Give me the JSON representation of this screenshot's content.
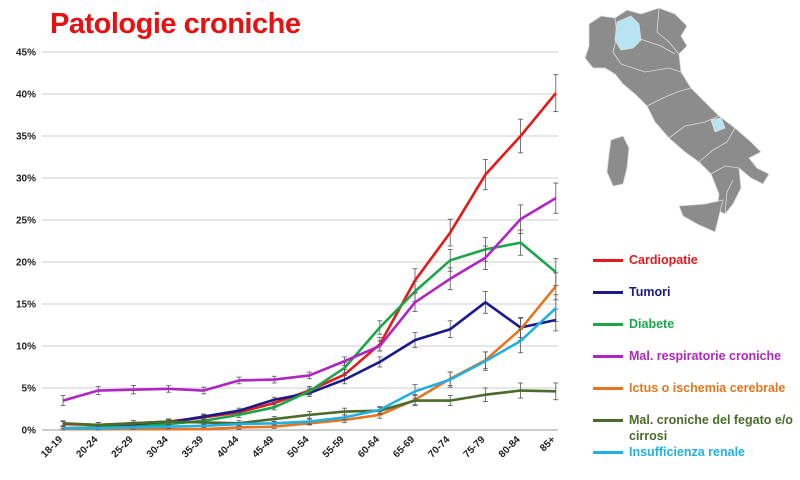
{
  "page": {
    "title": "Patologie croniche"
  },
  "colors": {
    "title": "#e81010",
    "grid": "#cfcfcf",
    "map_land": "#8c8c8c",
    "map_highlight": "#b8e3f2",
    "map_border": "#dcdcdc"
  },
  "map": {
    "icon": "italy-map",
    "highlighted_regions": [
      "Lombardia",
      "Molise"
    ]
  },
  "chart_data": {
    "type": "line",
    "title": "Patologie croniche",
    "xlabel": "",
    "ylabel": "",
    "ylim": [
      0,
      45
    ],
    "y_ticks": [
      0,
      5,
      10,
      15,
      20,
      25,
      30,
      35,
      40,
      45
    ],
    "y_tick_labels": [
      "0%",
      "5%",
      "10%",
      "15%",
      "20%",
      "25%",
      "30%",
      "35%",
      "40%",
      "45%"
    ],
    "grid": "horizontal",
    "legend_position": "right",
    "error_bars": true,
    "categories": [
      "18-19",
      "20-24",
      "25-29",
      "30-34",
      "35-39",
      "40-44",
      "45-49",
      "50-54",
      "55-59",
      "60-64",
      "65-69",
      "70-74",
      "75-79",
      "80-84",
      "85+"
    ],
    "series": [
      {
        "name": "Cardiopatie",
        "color": "#e81818",
        "values": [
          0.7,
          0.6,
          0.8,
          1.0,
          1.5,
          2.1,
          3.2,
          4.7,
          6.6,
          10.2,
          17.8,
          23.5,
          30.4,
          35.0,
          40.1
        ],
        "errors": [
          0.3,
          0.3,
          0.3,
          0.3,
          0.3,
          0.3,
          0.4,
          0.5,
          0.6,
          0.8,
          1.4,
          1.6,
          1.8,
          2.0,
          2.2
        ]
      },
      {
        "name": "Tumori",
        "color": "#1a1a8c",
        "values": [
          0.2,
          0.3,
          0.5,
          0.9,
          1.6,
          2.3,
          3.6,
          4.4,
          6.0,
          8.1,
          10.7,
          12.0,
          15.2,
          12.2,
          13.1
        ],
        "errors": [
          0.2,
          0.2,
          0.2,
          0.3,
          0.3,
          0.3,
          0.3,
          0.4,
          0.5,
          0.6,
          0.9,
          1.0,
          1.3,
          1.2,
          1.3
        ]
      },
      {
        "name": "Diabete",
        "color": "#1ba64a",
        "values": [
          0.2,
          0.3,
          0.4,
          0.7,
          1.1,
          1.8,
          2.7,
          4.6,
          7.4,
          12.2,
          16.5,
          20.2,
          21.5,
          22.3,
          18.8
        ],
        "errors": [
          0.2,
          0.2,
          0.2,
          0.2,
          0.3,
          0.3,
          0.3,
          0.4,
          0.6,
          0.8,
          1.2,
          1.3,
          1.4,
          1.5,
          1.6
        ]
      },
      {
        "name": "Mal. respiratorie croniche",
        "color": "#b025c3",
        "values": [
          3.5,
          4.7,
          4.8,
          4.9,
          4.7,
          5.9,
          6.0,
          6.5,
          8.2,
          10.0,
          15.2,
          18.0,
          20.5,
          25.1,
          27.6
        ],
        "errors": [
          0.6,
          0.5,
          0.5,
          0.4,
          0.4,
          0.4,
          0.4,
          0.4,
          0.5,
          0.6,
          1.1,
          1.3,
          1.4,
          1.7,
          1.8
        ]
      },
      {
        "name": "Ictus o ischemia cerebrale",
        "color": "#e8741e",
        "values": [
          0.1,
          0.1,
          0.1,
          0.1,
          0.1,
          0.3,
          0.4,
          0.8,
          1.2,
          1.8,
          3.6,
          6.1,
          8.3,
          12.0,
          17.1
        ],
        "errors": [
          0.1,
          0.1,
          0.1,
          0.1,
          0.1,
          0.2,
          0.2,
          0.2,
          0.3,
          0.4,
          0.6,
          0.8,
          1.0,
          1.3,
          1.6
        ]
      },
      {
        "name": "Mal. croniche del fegato e/o cirrosi",
        "color": "#4a6b2a",
        "values": [
          0.8,
          0.6,
          0.8,
          1.0,
          0.9,
          0.8,
          1.3,
          1.8,
          2.2,
          2.3,
          3.5,
          3.5,
          4.2,
          4.7,
          4.6
        ],
        "errors": [
          0.3,
          0.3,
          0.3,
          0.3,
          0.3,
          0.3,
          0.3,
          0.4,
          0.4,
          0.4,
          0.6,
          0.6,
          0.8,
          0.9,
          1.0
        ]
      },
      {
        "name": "Insufficienza renale",
        "color": "#1fb0e6",
        "values": [
          0.2,
          0.2,
          0.3,
          0.4,
          0.5,
          0.7,
          0.8,
          1.0,
          1.5,
          2.4,
          4.6,
          6.0,
          8.2,
          10.6,
          14.5
        ],
        "errors": [
          0.2,
          0.2,
          0.2,
          0.2,
          0.2,
          0.2,
          0.2,
          0.3,
          0.3,
          0.4,
          0.8,
          0.9,
          1.1,
          1.4,
          1.6
        ]
      }
    ]
  }
}
